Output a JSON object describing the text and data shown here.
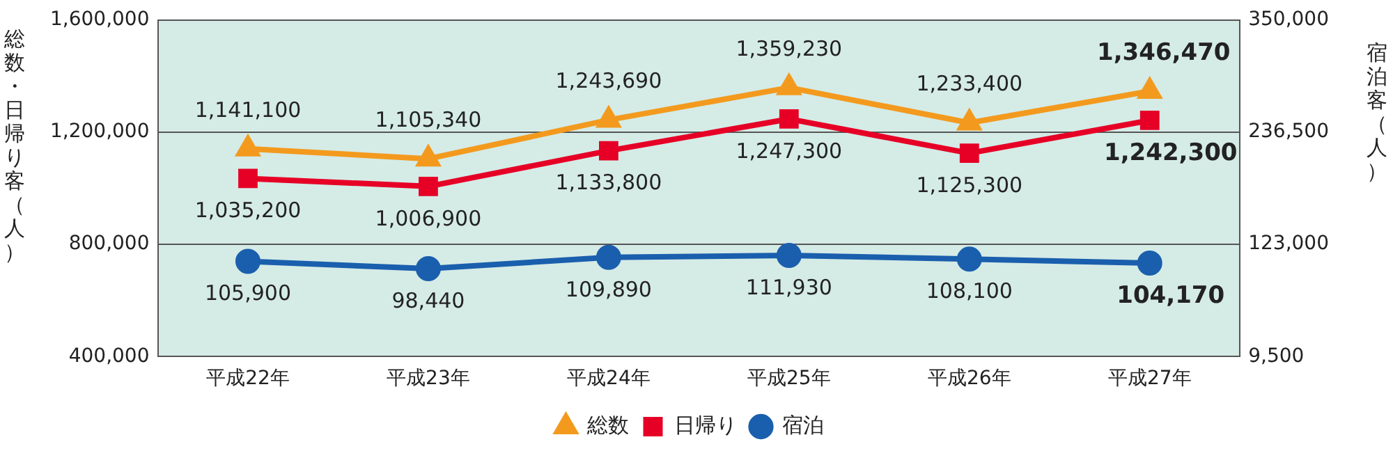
{
  "chart_data": {
    "type": "line",
    "categories": [
      "平成22年",
      "平成23年",
      "平成24年",
      "平成25年",
      "平成26年",
      "平成27年"
    ],
    "series": [
      {
        "name": "総数",
        "color": "#f39a1e",
        "marker": "triangle",
        "values": [
          1141100,
          1105340,
          1243690,
          1359230,
          1233400,
          1346470
        ],
        "value_labels": [
          "1,141,100",
          "1,105,340",
          "1,243,690",
          "1,359,230",
          "1,233,400",
          "1,346,470"
        ]
      },
      {
        "name": "日帰り",
        "color": "#e60026",
        "marker": "square",
        "values": [
          1035200,
          1006900,
          1133800,
          1247300,
          1125300,
          1242300
        ],
        "value_labels": [
          "1,035,200",
          "1,006,900",
          "1,133,800",
          "1,247,300",
          "1,125,300",
          "1,242,300"
        ]
      },
      {
        "name": "宿泊",
        "color": "#1a5fad",
        "marker": "circle",
        "axis": "y2",
        "values": [
          105900,
          98440,
          109890,
          111930,
          108100,
          104170
        ],
        "value_labels": [
          "105,900",
          "98,440",
          "109,890",
          "111,930",
          "108,100",
          "104,170"
        ]
      }
    ],
    "ylabel": "総数・日帰り客（人）",
    "y2label": "宿泊客（人）",
    "ylim": [
      400000,
      1600000
    ],
    "yticks": [
      {
        "value": 400000,
        "label": "400,000"
      },
      {
        "value": 800000,
        "label": "800,000"
      },
      {
        "value": 1200000,
        "label": "1,200,000"
      },
      {
        "value": 1600000,
        "label": "1,600,000"
      }
    ],
    "y2lim": [
      9500,
      350000
    ],
    "y2ticks": [
      {
        "value": 9500,
        "label": "9,500"
      },
      {
        "value": 123000,
        "label": "123,000"
      },
      {
        "value": 236500,
        "label": "236,500"
      },
      {
        "value": 350000,
        "label": "350,000"
      }
    ],
    "grid": "y",
    "legend": "bottom",
    "line_style": "solid"
  }
}
